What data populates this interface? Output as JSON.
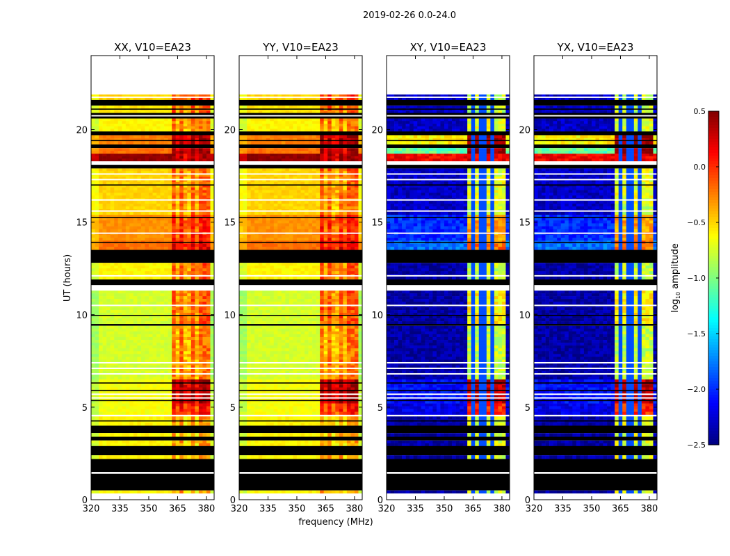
{
  "chart_data": {
    "type": "heatmap",
    "title": "2019-02-26 0.0-24.0",
    "xlabel": "frequency (MHz)",
    "ylabel": "UT (hours)",
    "xlim": [
      320,
      384
    ],
    "ylim": [
      0,
      24
    ],
    "xticks": [
      "320",
      "335",
      "350",
      "365",
      "380"
    ],
    "yticks": [
      "0",
      "5",
      "10",
      "15",
      "20"
    ],
    "xtick_values": [
      320,
      335,
      350,
      365,
      380
    ],
    "ytick_values": [
      0,
      5,
      10,
      15,
      20
    ],
    "grid": false,
    "colorbar": {
      "label_prefix": "log",
      "label_sub": "10",
      "label_suffix": " amplitude",
      "vmin": -2.5,
      "vmax": 0.5,
      "colormap": "jet",
      "ticks": [
        "0.5",
        "0.0",
        "−0.5",
        "−1.0",
        "−1.5",
        "−2.0",
        "−2.5"
      ],
      "tick_values": [
        0.5,
        0.0,
        -0.5,
        -1.0,
        -1.5,
        -2.0,
        -2.5
      ]
    },
    "panels": [
      {
        "title": "XX, V10=EA23",
        "kind": "parallel"
      },
      {
        "title": "YY, V10=EA23",
        "kind": "parallel"
      },
      {
        "title": "XY, V10=EA23",
        "kind": "cross"
      },
      {
        "title": "YX, V10=EA23",
        "kind": "cross"
      }
    ],
    "high_band_mhz": [
      361,
      381
    ],
    "cross_dip_channels_mhz": [
      365,
      370,
      375
    ],
    "segments": [
      {
        "t0": 21.9,
        "t1": 24.0,
        "state": "blank"
      },
      {
        "t0": 21.6,
        "t1": 21.9,
        "state": "data",
        "par": [
          -0.5,
          0.0
        ],
        "cross": [
          -2.3,
          -0.8
        ]
      },
      {
        "t0": 21.3,
        "t1": 21.6,
        "state": "flagged"
      },
      {
        "t0": 20.9,
        "t1": 21.3,
        "state": "data",
        "par": [
          -0.55,
          -0.1
        ],
        "cross": [
          -2.3,
          -0.8
        ]
      },
      {
        "t0": 20.6,
        "t1": 20.9,
        "state": "flagged"
      },
      {
        "t0": 19.9,
        "t1": 20.6,
        "state": "data",
        "par": [
          -0.6,
          -0.2
        ],
        "cross": [
          -2.3,
          -0.7
        ]
      },
      {
        "t0": 19.7,
        "t1": 19.9,
        "state": "flagged"
      },
      {
        "t0": 19.2,
        "t1": 19.7,
        "state": "data",
        "par": [
          -0.25,
          0.4
        ],
        "cross": [
          -0.6,
          0.4
        ]
      },
      {
        "t0": 19.0,
        "t1": 19.2,
        "state": "flagged"
      },
      {
        "t0": 18.7,
        "t1": 19.0,
        "state": "data",
        "par": [
          -0.2,
          0.45
        ],
        "cross": [
          -1.1,
          0.45
        ]
      },
      {
        "t0": 18.3,
        "t1": 18.7,
        "state": "data",
        "par": [
          0.45,
          0.45
        ],
        "cross": [
          0.15,
          0.2
        ]
      },
      {
        "t0": 18.1,
        "t1": 18.3,
        "state": "blank"
      },
      {
        "t0": 17.9,
        "t1": 18.1,
        "state": "flagged"
      },
      {
        "t0": 16.0,
        "t1": 17.9,
        "state": "data",
        "par": [
          -0.5,
          -0.15
        ],
        "cross": [
          -2.3,
          -0.7
        ]
      },
      {
        "t0": 15.4,
        "t1": 16.0,
        "state": "data",
        "par": [
          -0.5,
          -0.2
        ],
        "cross": [
          -2.3,
          -0.8
        ]
      },
      {
        "t0": 14.0,
        "t1": 15.4,
        "state": "data",
        "par": [
          -0.3,
          0.05
        ],
        "cross": [
          -2.0,
          -0.35
        ]
      },
      {
        "t0": 13.5,
        "t1": 14.0,
        "state": "data",
        "par": [
          -0.2,
          0.2
        ],
        "cross": [
          -1.8,
          -0.2
        ]
      },
      {
        "t0": 12.8,
        "t1": 13.5,
        "state": "flagged"
      },
      {
        "t0": 11.9,
        "t1": 12.8,
        "state": "data",
        "par": [
          -0.6,
          -0.1
        ],
        "cross": [
          -2.4,
          -0.8
        ]
      },
      {
        "t0": 11.6,
        "t1": 11.9,
        "state": "flagged"
      },
      {
        "t0": 11.3,
        "t1": 11.6,
        "state": "blank"
      },
      {
        "t0": 9.5,
        "t1": 11.3,
        "state": "data",
        "par": [
          -0.75,
          -0.1
        ],
        "cross": [
          -2.4,
          -0.6
        ]
      },
      {
        "t0": 9.4,
        "t1": 9.5,
        "state": "flagged"
      },
      {
        "t0": 6.5,
        "t1": 9.4,
        "state": "data",
        "par": [
          -0.75,
          -0.2
        ],
        "cross": [
          -2.4,
          -0.8
        ]
      },
      {
        "t0": 5.2,
        "t1": 6.5,
        "state": "data",
        "par": [
          -0.65,
          0.4
        ],
        "cross": [
          -2.1,
          0.3
        ]
      },
      {
        "t0": 4.6,
        "t1": 5.2,
        "state": "data",
        "par": [
          -0.65,
          0.1
        ],
        "cross": [
          -2.2,
          0.0
        ]
      },
      {
        "t0": 4.5,
        "t1": 4.6,
        "state": "blank"
      },
      {
        "t0": 4.0,
        "t1": 4.5,
        "state": "data",
        "par": [
          -0.6,
          -0.3
        ],
        "cross": [
          -2.4,
          -0.7
        ]
      },
      {
        "t0": 3.6,
        "t1": 4.0,
        "state": "flagged"
      },
      {
        "t0": 3.4,
        "t1": 3.6,
        "state": "data",
        "par": [
          -0.6,
          -0.3
        ],
        "cross": [
          -2.4,
          -0.7
        ]
      },
      {
        "t0": 3.2,
        "t1": 3.4,
        "state": "flagged"
      },
      {
        "t0": 2.9,
        "t1": 3.2,
        "state": "data",
        "par": [
          -0.6,
          -0.3
        ],
        "cross": [
          -2.4,
          -0.7
        ]
      },
      {
        "t0": 2.4,
        "t1": 2.9,
        "state": "flagged"
      },
      {
        "t0": 2.2,
        "t1": 2.4,
        "state": "data",
        "par": [
          -0.6,
          -0.3
        ],
        "cross": [
          -2.4,
          -0.7
        ]
      },
      {
        "t0": 1.5,
        "t1": 2.2,
        "state": "flagged"
      },
      {
        "t0": 1.4,
        "t1": 1.5,
        "state": "blank"
      },
      {
        "t0": 0.5,
        "t1": 1.4,
        "state": "flagged"
      },
      {
        "t0": 0.35,
        "t1": 0.5,
        "state": "data",
        "par": [
          -0.6,
          -0.3
        ],
        "cross": [
          -2.4,
          -0.7
        ]
      },
      {
        "t0": 0.0,
        "t1": 0.35,
        "state": "blank"
      }
    ],
    "white_gaps_hours": [
      21.75,
      20.75,
      17.6,
      17.3,
      16.2,
      15.6,
      14.4,
      12.1,
      10.5,
      7.4,
      7.1,
      6.8,
      5.7,
      5.5
    ],
    "black_lines_hours": [
      21.1,
      19.4,
      17.0,
      15.25,
      13.9,
      9.95,
      6.3,
      5.9,
      5.35,
      4.25
    ]
  }
}
